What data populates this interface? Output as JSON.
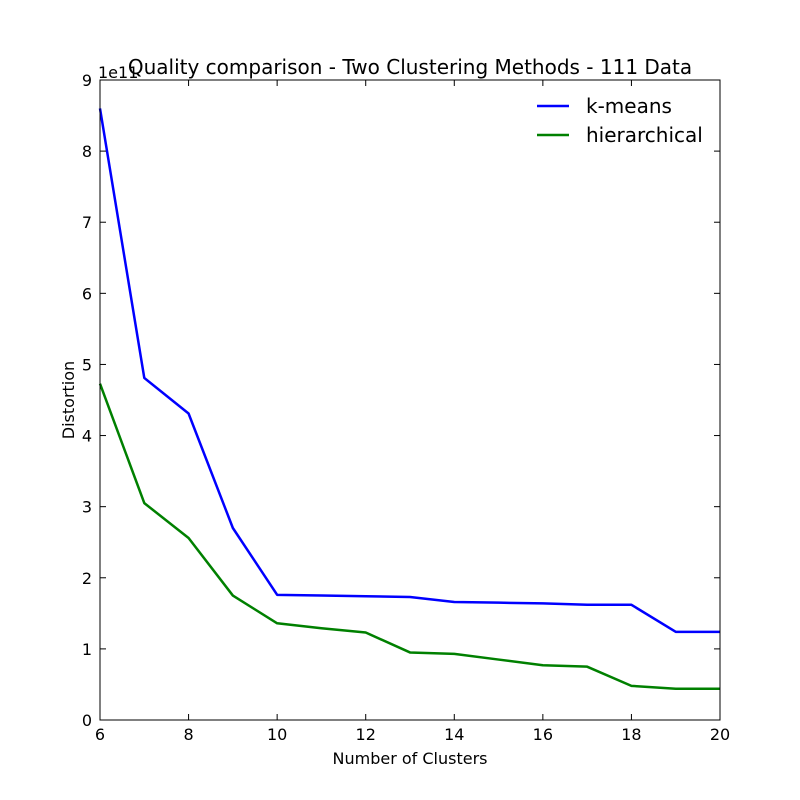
{
  "chart_data": {
    "type": "line",
    "title": "Quality comparison - Two Clustering Methods - 111 Data",
    "xlabel": "Number of Clusters",
    "ylabel": "Distortion",
    "y_offset_label": "1e11",
    "xlim": [
      6,
      20
    ],
    "ylim": [
      0,
      9
    ],
    "xticks": [
      "6",
      "8",
      "10",
      "12",
      "14",
      "16",
      "18",
      "20"
    ],
    "yticks": [
      "0",
      "1",
      "2",
      "3",
      "4",
      "5",
      "6",
      "7",
      "8",
      "9"
    ],
    "grid": false,
    "legend_position": "top-right",
    "x": [
      6,
      7,
      8,
      9,
      10,
      11,
      12,
      13,
      14,
      15,
      16,
      17,
      18,
      19,
      20
    ],
    "series": [
      {
        "name": "k-means",
        "color": "#0000ff",
        "values": [
          8.6,
          4.81,
          4.31,
          2.7,
          1.76,
          1.75,
          1.74,
          1.73,
          1.66,
          1.65,
          1.64,
          1.62,
          1.62,
          1.24,
          1.24
        ]
      },
      {
        "name": "hierarchical",
        "color": "#008000",
        "values": [
          4.73,
          3.05,
          2.56,
          1.75,
          1.36,
          1.29,
          1.23,
          0.95,
          0.93,
          0.85,
          0.77,
          0.75,
          0.48,
          0.44,
          0.44
        ]
      }
    ]
  }
}
